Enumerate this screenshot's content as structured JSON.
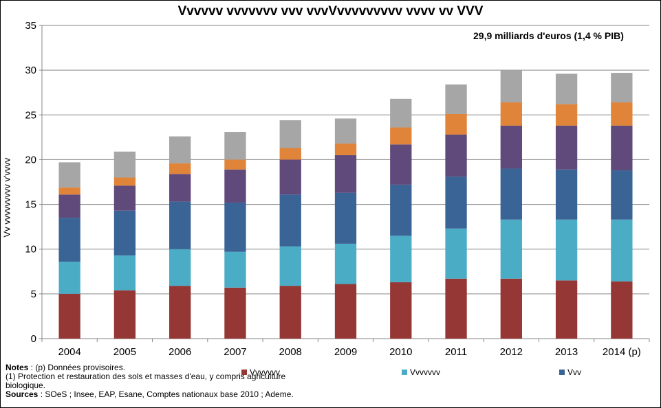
{
  "chart_data": {
    "type": "bar",
    "stacked": true,
    "title": "Vvvvvv vvvvvvv vvv vvvVvvvvvvvvv vvvv vv VVV",
    "ylabel": "Vv vvvvvvvvv v'vvvv",
    "annotation": "29,9 milliards d'euros (1,4 % PIB)",
    "ylim": [
      0,
      35
    ],
    "yticks": [
      0,
      5,
      10,
      15,
      20,
      25,
      30,
      35
    ],
    "grid": true,
    "legend_position": "bottom",
    "categories": [
      "2004",
      "2005",
      "2006",
      "2007",
      "2008",
      "2009",
      "2010",
      "2011",
      "2012",
      "2013",
      "2014 (p)"
    ],
    "series": [
      {
        "name": "Vvvvvvv",
        "color": "#953735",
        "values": [
          5.0,
          5.4,
          5.9,
          5.7,
          5.9,
          6.1,
          6.3,
          6.7,
          6.7,
          6.5,
          6.4
        ]
      },
      {
        "name": "Vvvvvvv",
        "color": "#4BACC6",
        "values": [
          3.6,
          3.9,
          4.1,
          4.0,
          4.4,
          4.5,
          5.2,
          5.6,
          6.6,
          6.8,
          6.9
        ]
      },
      {
        "name": "Vvv",
        "color": "#3A6496",
        "values": [
          4.9,
          5.0,
          5.3,
          5.5,
          5.8,
          5.7,
          5.7,
          5.8,
          5.7,
          5.6,
          5.5
        ]
      },
      {
        "color": "#604A7B",
        "values": [
          2.6,
          2.8,
          3.1,
          3.7,
          3.9,
          4.2,
          4.5,
          4.7,
          4.8,
          4.9,
          5.0
        ]
      },
      {
        "color": "#E0843A",
        "values": [
          0.8,
          0.9,
          1.2,
          1.1,
          1.3,
          1.3,
          1.9,
          2.3,
          2.6,
          2.4,
          2.6
        ]
      },
      {
        "color": "#A6A6A6",
        "values": [
          2.8,
          2.9,
          3.0,
          3.1,
          3.1,
          2.8,
          3.2,
          3.3,
          3.6,
          3.4,
          3.3
        ]
      }
    ]
  },
  "notes": {
    "notes_label": "Notes",
    "notes_text": " : (p) Données provisoires.",
    "note1": "(1) Protection et restauration des sols et masses d'eau, y compris agriculture biologique.",
    "sources_label": "Sources",
    "sources_text": " : SOeS ; Insee, EAP, Esane, Comptes nationaux base 2010 ; Ademe."
  }
}
